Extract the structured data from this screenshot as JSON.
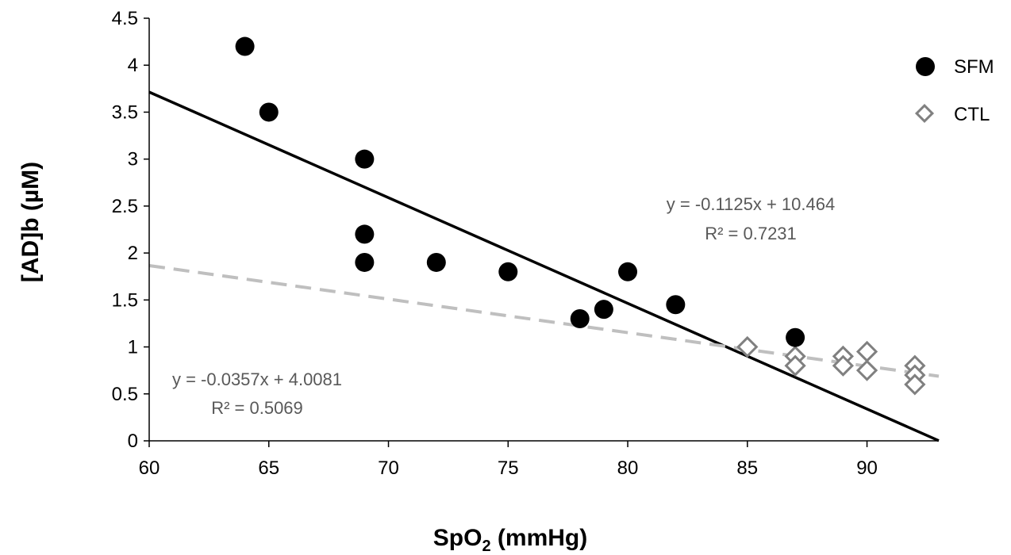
{
  "chart_data": {
    "type": "scatter",
    "title": "",
    "xlabel_main": "SpO",
    "xlabel_sub": "2",
    "xlabel_rest": " (mmHg)",
    "ylabel": "[AD]b (µM)",
    "xlim": [
      60,
      93
    ],
    "ylim": [
      0,
      4.5
    ],
    "x_ticks": [
      60,
      65,
      70,
      75,
      80,
      85,
      90
    ],
    "y_ticks": [
      0,
      0.5,
      1,
      1.5,
      2,
      2.5,
      3,
      3.5,
      4,
      4.5
    ],
    "x_tick_labels": [
      "60",
      "65",
      "70",
      "75",
      "80",
      "85",
      "90"
    ],
    "y_tick_labels": [
      "0",
      "0.5",
      "1",
      "1.5",
      "2",
      "2.5",
      "3",
      "3.5",
      "4",
      "4.5"
    ],
    "legend_position": "top-right",
    "series": [
      {
        "name": "SFM",
        "marker": "filled-circle",
        "color": "#000000",
        "points": [
          {
            "x": 64,
            "y": 4.2
          },
          {
            "x": 65,
            "y": 3.5
          },
          {
            "x": 69,
            "y": 3.0
          },
          {
            "x": 69,
            "y": 2.2
          },
          {
            "x": 69,
            "y": 1.9
          },
          {
            "x": 72,
            "y": 1.9
          },
          {
            "x": 75,
            "y": 1.8
          },
          {
            "x": 78,
            "y": 1.3
          },
          {
            "x": 79,
            "y": 1.4
          },
          {
            "x": 80,
            "y": 1.8
          },
          {
            "x": 82,
            "y": 1.45
          },
          {
            "x": 87,
            "y": 1.1
          }
        ],
        "trendline": {
          "slope": -0.1125,
          "intercept": 10.464,
          "style": "solid",
          "color": "#000000",
          "x_range": [
            60,
            93
          ]
        },
        "equation_label": "y = -0.1125x + 10.464",
        "r2_label": "R² = 0.7231"
      },
      {
        "name": "CTL",
        "marker": "open-diamond",
        "color": "#808080",
        "points": [
          {
            "x": 85,
            "y": 1.0
          },
          {
            "x": 87,
            "y": 0.9
          },
          {
            "x": 87,
            "y": 0.8
          },
          {
            "x": 89,
            "y": 0.9
          },
          {
            "x": 89,
            "y": 0.8
          },
          {
            "x": 90,
            "y": 0.95
          },
          {
            "x": 90,
            "y": 0.75
          },
          {
            "x": 92,
            "y": 0.8
          },
          {
            "x": 92,
            "y": 0.7
          },
          {
            "x": 92,
            "y": 0.6
          }
        ],
        "trendline": {
          "slope": -0.0357,
          "intercept": 4.0081,
          "style": "dashed",
          "color": "#bfbfbf",
          "x_range": [
            60,
            93
          ]
        },
        "equation_label": "y = -0.0357x + 4.0081",
        "r2_label": "R² = 0.5069"
      }
    ]
  }
}
